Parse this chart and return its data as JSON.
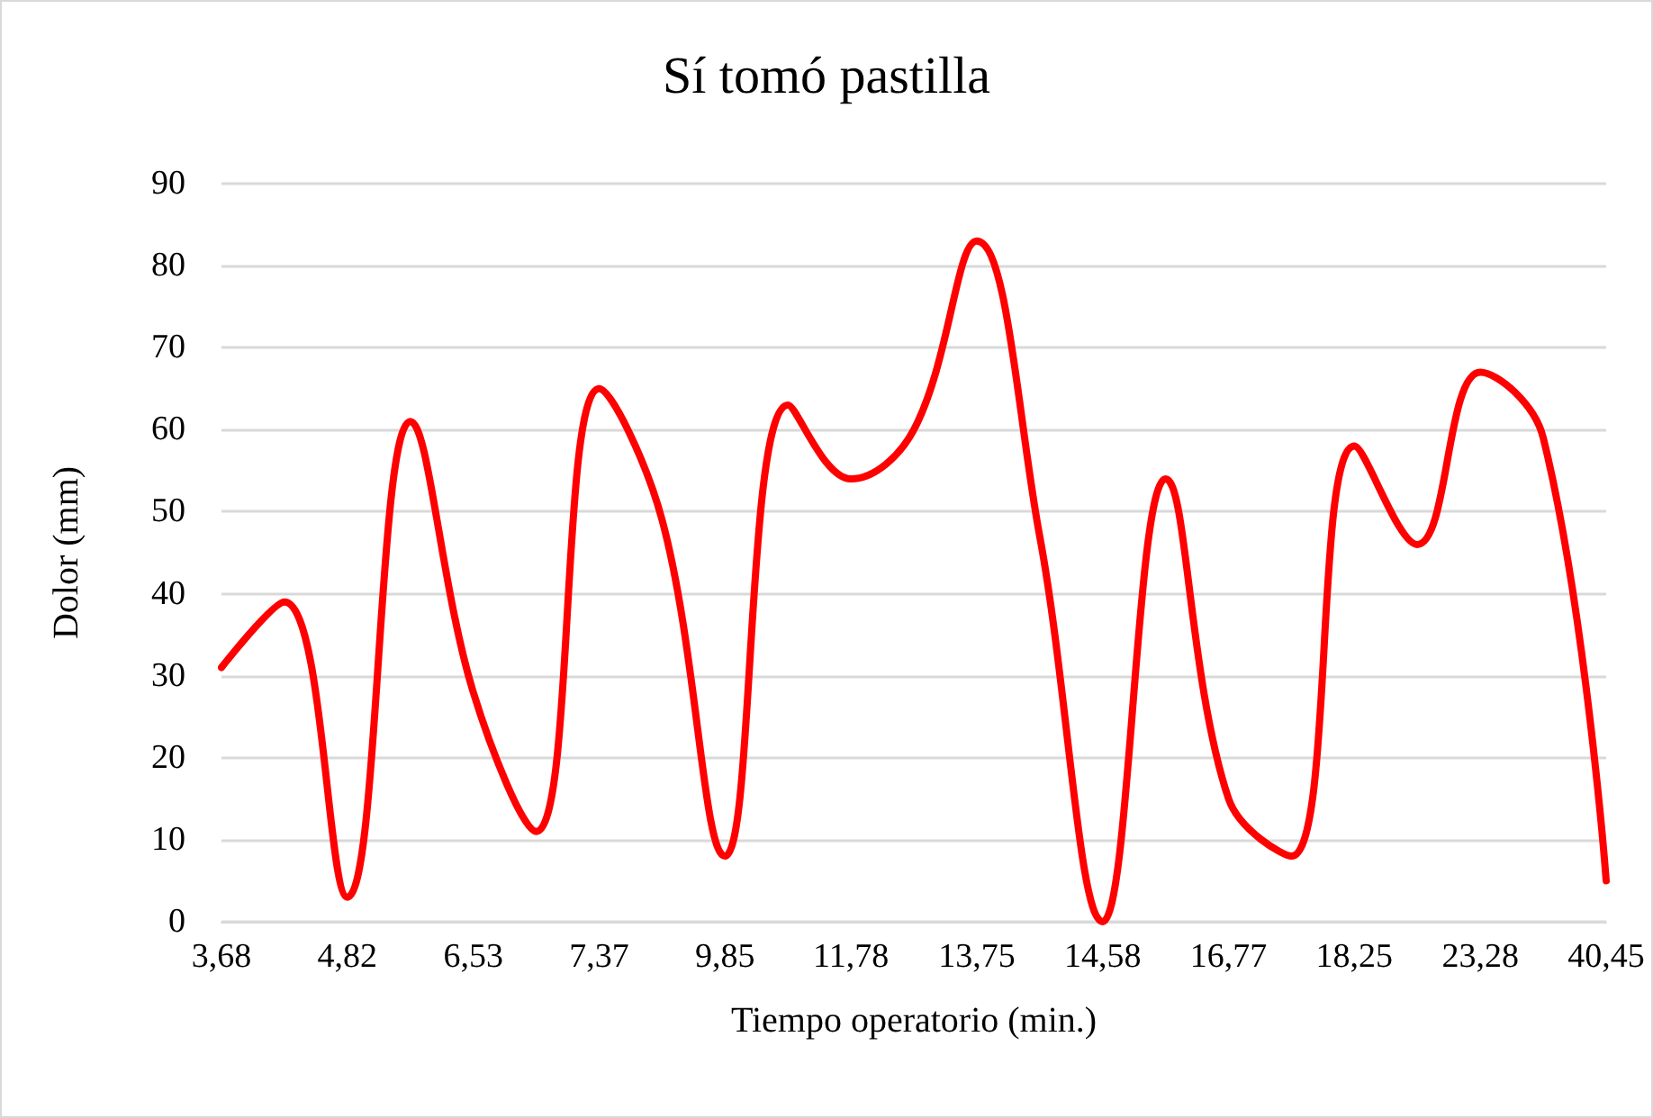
{
  "chart_data": {
    "type": "line",
    "title": "Sí tomó pastilla",
    "xlabel": "Tiempo operatorio (min.)",
    "ylabel": "Dolor (mm)",
    "categories": [
      "3,68",
      null,
      "4,82",
      null,
      "6,53",
      null,
      "7,37",
      null,
      "9,85",
      null,
      "11,78",
      null,
      "13,75",
      null,
      "14,58",
      null,
      "16,77",
      null,
      "18,25",
      null,
      "23,28",
      null,
      "40,45"
    ],
    "series": [
      {
        "color": "#ff0000",
        "values": [
          31,
          39,
          3,
          61,
          28,
          11,
          65,
          49,
          8,
          63,
          54,
          60,
          83,
          47,
          0,
          54,
          15,
          8,
          58,
          46,
          67,
          59,
          5
        ]
      }
    ],
    "ylim": [
      0,
      90
    ],
    "yticks": [
      0,
      10,
      20,
      30,
      40,
      50,
      60,
      70,
      80,
      90
    ],
    "grid": "y",
    "marker": "none",
    "line_style": "solid"
  }
}
